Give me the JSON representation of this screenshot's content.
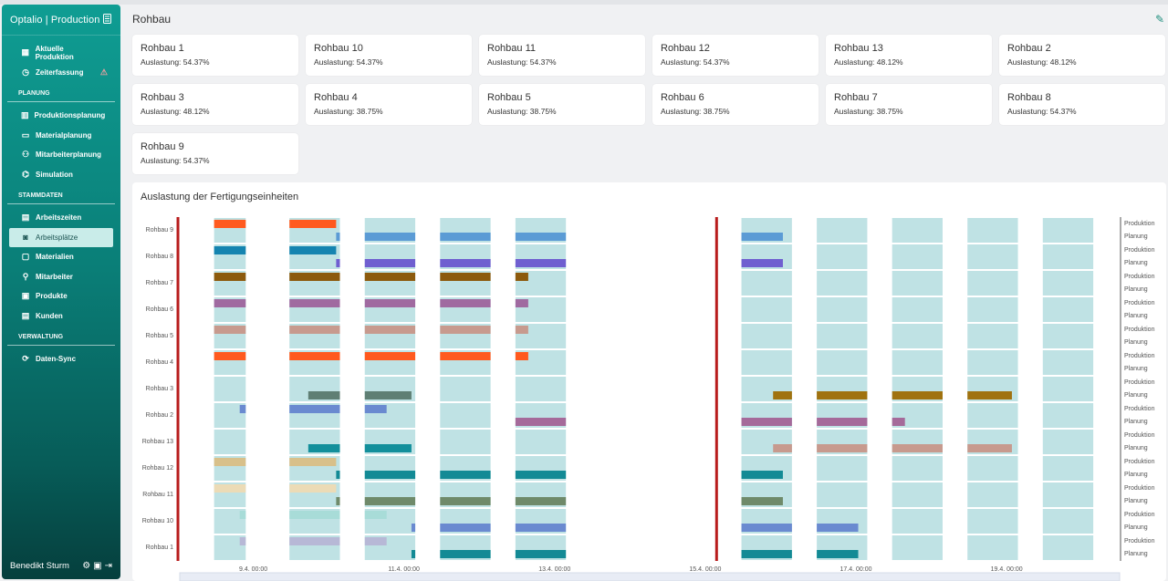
{
  "app": {
    "title": "Optalio | Production"
  },
  "sidebar": {
    "items_top": [
      {
        "label": "Aktuelle Produktion",
        "icon": "building-icon"
      },
      {
        "label": "Zeiterfassung",
        "icon": "clock-icon",
        "warning": true
      }
    ],
    "section_planung": "PLANUNG",
    "items_planung": [
      {
        "label": "Produktionsplanung",
        "icon": "chart-icon"
      },
      {
        "label": "Materialplanung",
        "icon": "box-icon"
      },
      {
        "label": "Mitarbeiterplanung",
        "icon": "people-icon"
      },
      {
        "label": "Simulation",
        "icon": "simulation-icon"
      }
    ],
    "section_stammdaten": "STAMMDATEN",
    "items_stammdaten": [
      {
        "label": "Arbeitszeiten",
        "icon": "calendar-icon"
      },
      {
        "label": "Arbeitsplätze",
        "icon": "workplace-icon",
        "active": true
      },
      {
        "label": "Materialien",
        "icon": "material-icon"
      },
      {
        "label": "Mitarbeiter",
        "icon": "user-icon"
      },
      {
        "label": "Produkte",
        "icon": "product-icon"
      },
      {
        "label": "Kunden",
        "icon": "customer-icon"
      }
    ],
    "section_verwaltung": "VERWALTUNG",
    "items_verwaltung": [
      {
        "label": "Daten-Sync",
        "icon": "sync-icon"
      }
    ],
    "user": "Benedikt Sturm"
  },
  "main": {
    "title": "Rohbau",
    "util_label": "Auslastung:",
    "cards": [
      {
        "name": "Rohbau 1",
        "util": "54.37%"
      },
      {
        "name": "Rohbau 10",
        "util": "54.37%"
      },
      {
        "name": "Rohbau 11",
        "util": "54.37%"
      },
      {
        "name": "Rohbau 12",
        "util": "54.37%"
      },
      {
        "name": "Rohbau 13",
        "util": "48.12%"
      },
      {
        "name": "Rohbau 2",
        "util": "48.12%"
      },
      {
        "name": "Rohbau 3",
        "util": "48.12%"
      },
      {
        "name": "Rohbau 4",
        "util": "38.75%"
      },
      {
        "name": "Rohbau 5",
        "util": "38.75%"
      },
      {
        "name": "Rohbau 6",
        "util": "38.75%"
      },
      {
        "name": "Rohbau 7",
        "util": "38.75%"
      },
      {
        "name": "Rohbau 8",
        "util": "54.37%"
      },
      {
        "name": "Rohbau 9",
        "util": "54.37%"
      }
    ]
  },
  "chart_data": {
    "type": "gantt",
    "title": "Auslastung der Fertigungseinheiten",
    "rows": [
      "Rohbau 9",
      "Rohbau 8",
      "Rohbau 7",
      "Rohbau 6",
      "Rohbau 5",
      "Rohbau 4",
      "Rohbau 3",
      "Rohbau 2",
      "Rohbau 13",
      "Rohbau 12",
      "Rohbau 11",
      "Rohbau 10",
      "Rohbau 1"
    ],
    "sublanes": [
      "Produktion",
      "Planung"
    ],
    "x_ticks": [
      "9.4. 00:00",
      "11.4. 00:00",
      "13.4. 00:00",
      "15.4. 00:00",
      "17.4. 00:00",
      "19.4. 00:00"
    ],
    "x_range_days": [
      8.0,
      20.5
    ],
    "markers_day": [
      8.0,
      15.15
    ],
    "workday_windows": [
      [
        8.48,
        8.9
      ],
      [
        9.48,
        10.15
      ],
      [
        10.48,
        11.15
      ],
      [
        11.48,
        12.15
      ],
      [
        12.48,
        13.15
      ],
      [
        15.48,
        16.15
      ],
      [
        16.48,
        17.15
      ],
      [
        17.48,
        18.15
      ],
      [
        18.48,
        19.15
      ],
      [
        19.48,
        20.15
      ]
    ],
    "bars": [
      {
        "row": "Rohbau 9",
        "lane": "Produktion",
        "start": 8.48,
        "end": 8.9,
        "color": "#ff5a1f"
      },
      {
        "row": "Rohbau 9",
        "lane": "Produktion",
        "start": 9.48,
        "end": 10.1,
        "color": "#ff5a1f"
      },
      {
        "row": "Rohbau 9",
        "lane": "Planung",
        "start": 10.1,
        "end": 10.15,
        "color": "#5b9bd5"
      },
      {
        "row": "Rohbau 9",
        "lane": "Planung",
        "start": 10.48,
        "end": 11.15,
        "color": "#5b9bd5"
      },
      {
        "row": "Rohbau 9",
        "lane": "Planung",
        "start": 11.48,
        "end": 12.15,
        "color": "#5b9bd5"
      },
      {
        "row": "Rohbau 9",
        "lane": "Planung",
        "start": 12.48,
        "end": 13.15,
        "color": "#5b9bd5"
      },
      {
        "row": "Rohbau 9",
        "lane": "Planung",
        "start": 15.48,
        "end": 16.03,
        "color": "#5b9bd5"
      },
      {
        "row": "Rohbau 8",
        "lane": "Produktion",
        "start": 8.48,
        "end": 8.9,
        "color": "#1584b0"
      },
      {
        "row": "Rohbau 8",
        "lane": "Produktion",
        "start": 9.48,
        "end": 10.1,
        "color": "#1584b0"
      },
      {
        "row": "Rohbau 8",
        "lane": "Planung",
        "start": 10.1,
        "end": 10.15,
        "color": "#6f5fd0"
      },
      {
        "row": "Rohbau 8",
        "lane": "Planung",
        "start": 10.48,
        "end": 11.15,
        "color": "#6f5fd0"
      },
      {
        "row": "Rohbau 8",
        "lane": "Planung",
        "start": 11.48,
        "end": 12.15,
        "color": "#6f5fd0"
      },
      {
        "row": "Rohbau 8",
        "lane": "Planung",
        "start": 12.48,
        "end": 13.15,
        "color": "#6f5fd0"
      },
      {
        "row": "Rohbau 8",
        "lane": "Planung",
        "start": 15.48,
        "end": 16.03,
        "color": "#6f5fd0"
      },
      {
        "row": "Rohbau 7",
        "lane": "Produktion",
        "start": 8.48,
        "end": 8.9,
        "color": "#8c5a0d"
      },
      {
        "row": "Rohbau 7",
        "lane": "Produktion",
        "start": 9.48,
        "end": 10.15,
        "color": "#8c5a0d"
      },
      {
        "row": "Rohbau 7",
        "lane": "Produktion",
        "start": 10.48,
        "end": 11.15,
        "color": "#8c5a0d"
      },
      {
        "row": "Rohbau 7",
        "lane": "Produktion",
        "start": 11.48,
        "end": 12.15,
        "color": "#8c5a0d"
      },
      {
        "row": "Rohbau 7",
        "lane": "Produktion",
        "start": 12.48,
        "end": 12.65,
        "color": "#8c5a0d"
      },
      {
        "row": "Rohbau 6",
        "lane": "Produktion",
        "start": 8.48,
        "end": 8.9,
        "color": "#a06aa0"
      },
      {
        "row": "Rohbau 6",
        "lane": "Produktion",
        "start": 9.48,
        "end": 10.15,
        "color": "#a06aa0"
      },
      {
        "row": "Rohbau 6",
        "lane": "Produktion",
        "start": 10.48,
        "end": 11.15,
        "color": "#a06aa0"
      },
      {
        "row": "Rohbau 6",
        "lane": "Produktion",
        "start": 11.48,
        "end": 12.15,
        "color": "#a06aa0"
      },
      {
        "row": "Rohbau 6",
        "lane": "Produktion",
        "start": 12.48,
        "end": 12.65,
        "color": "#a06aa0"
      },
      {
        "row": "Rohbau 5",
        "lane": "Produktion",
        "start": 8.48,
        "end": 8.9,
        "color": "#c79a8e"
      },
      {
        "row": "Rohbau 5",
        "lane": "Produktion",
        "start": 9.48,
        "end": 10.15,
        "color": "#c79a8e"
      },
      {
        "row": "Rohbau 5",
        "lane": "Produktion",
        "start": 10.48,
        "end": 11.15,
        "color": "#c79a8e"
      },
      {
        "row": "Rohbau 5",
        "lane": "Produktion",
        "start": 11.48,
        "end": 12.15,
        "color": "#c79a8e"
      },
      {
        "row": "Rohbau 5",
        "lane": "Produktion",
        "start": 12.48,
        "end": 12.65,
        "color": "#c79a8e"
      },
      {
        "row": "Rohbau 4",
        "lane": "Produktion",
        "start": 8.48,
        "end": 8.9,
        "color": "#ff5a1f"
      },
      {
        "row": "Rohbau 4",
        "lane": "Produktion",
        "start": 9.48,
        "end": 10.15,
        "color": "#ff5a1f"
      },
      {
        "row": "Rohbau 4",
        "lane": "Produktion",
        "start": 10.48,
        "end": 11.15,
        "color": "#ff5a1f"
      },
      {
        "row": "Rohbau 4",
        "lane": "Produktion",
        "start": 11.48,
        "end": 12.15,
        "color": "#ff5a1f"
      },
      {
        "row": "Rohbau 4",
        "lane": "Produktion",
        "start": 12.48,
        "end": 12.65,
        "color": "#ff5a1f"
      },
      {
        "row": "Rohbau 3",
        "lane": "Planung",
        "start": 9.73,
        "end": 10.15,
        "color": "#5f7f74"
      },
      {
        "row": "Rohbau 3",
        "lane": "Planung",
        "start": 10.48,
        "end": 11.1,
        "color": "#5f7f74"
      },
      {
        "row": "Rohbau 3",
        "lane": "Planung",
        "start": 15.9,
        "end": 16.15,
        "color": "#a0720f"
      },
      {
        "row": "Rohbau 3",
        "lane": "Planung",
        "start": 16.48,
        "end": 17.15,
        "color": "#a0720f"
      },
      {
        "row": "Rohbau 3",
        "lane": "Planung",
        "start": 17.48,
        "end": 18.15,
        "color": "#a0720f"
      },
      {
        "row": "Rohbau 3",
        "lane": "Planung",
        "start": 18.48,
        "end": 19.07,
        "color": "#a0720f"
      },
      {
        "row": "Rohbau 2",
        "lane": "Produktion",
        "start": 8.82,
        "end": 8.9,
        "color": "#6a8ad0"
      },
      {
        "row": "Rohbau 2",
        "lane": "Produktion",
        "start": 9.48,
        "end": 10.15,
        "color": "#6a8ad0"
      },
      {
        "row": "Rohbau 2",
        "lane": "Produktion",
        "start": 10.48,
        "end": 10.77,
        "color": "#6a8ad0"
      },
      {
        "row": "Rohbau 2",
        "lane": "Planung",
        "start": 12.48,
        "end": 13.15,
        "color": "#a56a9a"
      },
      {
        "row": "Rohbau 2",
        "lane": "Planung",
        "start": 15.48,
        "end": 16.15,
        "color": "#a56a9a"
      },
      {
        "row": "Rohbau 2",
        "lane": "Planung",
        "start": 16.48,
        "end": 17.15,
        "color": "#a56a9a"
      },
      {
        "row": "Rohbau 2",
        "lane": "Planung",
        "start": 17.48,
        "end": 17.65,
        "color": "#a56a9a"
      },
      {
        "row": "Rohbau 13",
        "lane": "Planung",
        "start": 9.73,
        "end": 10.15,
        "color": "#138f9b"
      },
      {
        "row": "Rohbau 13",
        "lane": "Planung",
        "start": 10.48,
        "end": 11.1,
        "color": "#138f9b"
      },
      {
        "row": "Rohbau 13",
        "lane": "Planung",
        "start": 15.9,
        "end": 16.15,
        "color": "#c79a8e"
      },
      {
        "row": "Rohbau 13",
        "lane": "Planung",
        "start": 16.48,
        "end": 17.15,
        "color": "#c79a8e"
      },
      {
        "row": "Rohbau 13",
        "lane": "Planung",
        "start": 17.48,
        "end": 18.15,
        "color": "#c79a8e"
      },
      {
        "row": "Rohbau 13",
        "lane": "Planung",
        "start": 18.48,
        "end": 19.07,
        "color": "#c79a8e"
      },
      {
        "row": "Rohbau 12",
        "lane": "Produktion",
        "start": 8.48,
        "end": 8.9,
        "color": "#d8c08a"
      },
      {
        "row": "Rohbau 12",
        "lane": "Produktion",
        "start": 9.48,
        "end": 10.1,
        "color": "#d8c08a"
      },
      {
        "row": "Rohbau 12",
        "lane": "Planung",
        "start": 10.1,
        "end": 10.15,
        "color": "#138a95"
      },
      {
        "row": "Rohbau 12",
        "lane": "Planung",
        "start": 10.48,
        "end": 11.15,
        "color": "#138a95"
      },
      {
        "row": "Rohbau 12",
        "lane": "Planung",
        "start": 11.48,
        "end": 12.15,
        "color": "#138a95"
      },
      {
        "row": "Rohbau 12",
        "lane": "Planung",
        "start": 12.48,
        "end": 13.15,
        "color": "#138a95"
      },
      {
        "row": "Rohbau 12",
        "lane": "Planung",
        "start": 15.48,
        "end": 16.03,
        "color": "#138a95"
      },
      {
        "row": "Rohbau 11",
        "lane": "Produktion",
        "start": 8.48,
        "end": 8.9,
        "color": "#ecdbb6"
      },
      {
        "row": "Rohbau 11",
        "lane": "Produktion",
        "start": 9.48,
        "end": 10.1,
        "color": "#ecdbb6"
      },
      {
        "row": "Rohbau 11",
        "lane": "Planung",
        "start": 10.1,
        "end": 10.15,
        "color": "#6f8a6a"
      },
      {
        "row": "Rohbau 11",
        "lane": "Planung",
        "start": 10.48,
        "end": 11.15,
        "color": "#6f8a6a"
      },
      {
        "row": "Rohbau 11",
        "lane": "Planung",
        "start": 11.48,
        "end": 12.15,
        "color": "#6f8a6a"
      },
      {
        "row": "Rohbau 11",
        "lane": "Planung",
        "start": 12.48,
        "end": 13.15,
        "color": "#6f8a6a"
      },
      {
        "row": "Rohbau 11",
        "lane": "Planung",
        "start": 15.48,
        "end": 16.03,
        "color": "#6f8a6a"
      },
      {
        "row": "Rohbau 10",
        "lane": "Produktion",
        "start": 8.82,
        "end": 8.9,
        "color": "#a8dcd8"
      },
      {
        "row": "Rohbau 10",
        "lane": "Produktion",
        "start": 9.48,
        "end": 10.15,
        "color": "#a8dcd8"
      },
      {
        "row": "Rohbau 10",
        "lane": "Produktion",
        "start": 10.48,
        "end": 10.77,
        "color": "#a8dcd8"
      },
      {
        "row": "Rohbau 10",
        "lane": "Planung",
        "start": 11.1,
        "end": 11.15,
        "color": "#6a8ad0"
      },
      {
        "row": "Rohbau 10",
        "lane": "Planung",
        "start": 11.48,
        "end": 12.15,
        "color": "#6a8ad0"
      },
      {
        "row": "Rohbau 10",
        "lane": "Planung",
        "start": 12.48,
        "end": 13.15,
        "color": "#6a8ad0"
      },
      {
        "row": "Rohbau 10",
        "lane": "Planung",
        "start": 15.48,
        "end": 16.15,
        "color": "#6a8ad0"
      },
      {
        "row": "Rohbau 10",
        "lane": "Planung",
        "start": 16.48,
        "end": 17.03,
        "color": "#6a8ad0"
      },
      {
        "row": "Rohbau 1",
        "lane": "Produktion",
        "start": 8.82,
        "end": 8.9,
        "color": "#b7b8d6"
      },
      {
        "row": "Rohbau 1",
        "lane": "Produktion",
        "start": 9.48,
        "end": 10.15,
        "color": "#b7b8d6"
      },
      {
        "row": "Rohbau 1",
        "lane": "Produktion",
        "start": 10.48,
        "end": 10.77,
        "color": "#b7b8d6"
      },
      {
        "row": "Rohbau 1",
        "lane": "Planung",
        "start": 11.1,
        "end": 11.15,
        "color": "#138a95"
      },
      {
        "row": "Rohbau 1",
        "lane": "Planung",
        "start": 11.48,
        "end": 12.15,
        "color": "#138a95"
      },
      {
        "row": "Rohbau 1",
        "lane": "Planung",
        "start": 12.48,
        "end": 13.15,
        "color": "#138a95"
      },
      {
        "row": "Rohbau 1",
        "lane": "Planung",
        "start": 15.48,
        "end": 16.15,
        "color": "#138a95"
      },
      {
        "row": "Rohbau 1",
        "lane": "Planung",
        "start": 16.48,
        "end": 17.03,
        "color": "#138a95"
      }
    ]
  }
}
